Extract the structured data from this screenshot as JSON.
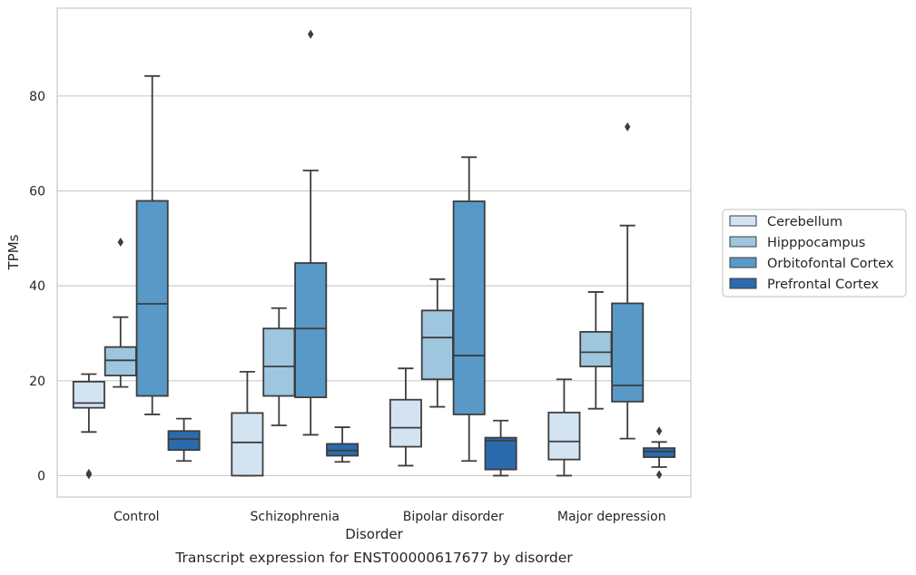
{
  "caption": "Transcript expression for ENST00000617677 by disorder",
  "chart_data": {
    "type": "boxplot",
    "xlabel": "Disorder",
    "ylabel": "TPMs",
    "ylim": [
      -4.5,
      98.5
    ],
    "yticks": [
      0,
      20,
      40,
      60,
      80
    ],
    "grid": "horizontal",
    "legend_position": "right",
    "categories": [
      "Control",
      "Schizophrenia",
      "Bipolar disorder",
      "Major depression"
    ],
    "series": [
      {
        "name": "Cerebellum",
        "color": "#d4e3f2",
        "boxes": [
          {
            "whisker_low": 9.2,
            "q1": 14.3,
            "median": 15.3,
            "q3": 19.8,
            "whisker_high": 21.4,
            "outliers": [
              0.2,
              0.5
            ]
          },
          {
            "whisker_low": 0.0,
            "q1": 0.0,
            "median": 7.0,
            "q3": 13.2,
            "whisker_high": 21.9,
            "outliers": []
          },
          {
            "whisker_low": 2.1,
            "q1": 6.1,
            "median": 10.1,
            "q3": 16.0,
            "whisker_high": 22.6,
            "outliers": []
          },
          {
            "whisker_low": 0.0,
            "q1": 3.4,
            "median": 7.2,
            "q3": 13.3,
            "whisker_high": 20.3,
            "outliers": []
          }
        ]
      },
      {
        "name": "Hipppocampus",
        "color": "#9ec6de",
        "boxes": [
          {
            "whisker_low": 18.7,
            "q1": 21.1,
            "median": 24.3,
            "q3": 27.1,
            "whisker_high": 33.4,
            "outliers": [
              49.2
            ]
          },
          {
            "whisker_low": 10.6,
            "q1": 16.8,
            "median": 23.0,
            "q3": 31.0,
            "whisker_high": 35.3,
            "outliers": []
          },
          {
            "whisker_low": 14.5,
            "q1": 20.3,
            "median": 29.1,
            "q3": 34.8,
            "whisker_high": 41.4,
            "outliers": []
          },
          {
            "whisker_low": 14.1,
            "q1": 23.0,
            "median": 26.0,
            "q3": 30.3,
            "whisker_high": 38.7,
            "outliers": []
          }
        ]
      },
      {
        "name": "Orbitofontal Cortex",
        "color": "#5899c7",
        "boxes": [
          {
            "whisker_low": 12.9,
            "q1": 16.8,
            "median": 36.2,
            "q3": 57.9,
            "whisker_high": 84.2,
            "outliers": []
          },
          {
            "whisker_low": 8.6,
            "q1": 16.5,
            "median": 31.0,
            "q3": 44.8,
            "whisker_high": 64.3,
            "outliers": [
              93.0
            ]
          },
          {
            "whisker_low": 3.1,
            "q1": 12.9,
            "median": 25.3,
            "q3": 57.8,
            "whisker_high": 67.1,
            "outliers": []
          },
          {
            "whisker_low": 7.8,
            "q1": 15.6,
            "median": 19.0,
            "q3": 36.3,
            "whisker_high": 52.7,
            "outliers": [
              73.5
            ]
          }
        ]
      },
      {
        "name": "Prefrontal Cortex",
        "color": "#2b6aac",
        "boxes": [
          {
            "whisker_low": 3.1,
            "q1": 5.4,
            "median": 7.7,
            "q3": 9.4,
            "whisker_high": 12.0,
            "outliers": []
          },
          {
            "whisker_low": 2.9,
            "q1": 4.2,
            "median": 5.3,
            "q3": 6.7,
            "whisker_high": 10.2,
            "outliers": []
          },
          {
            "whisker_low": 0.0,
            "q1": 1.3,
            "median": 7.4,
            "q3": 8.0,
            "whisker_high": 11.6,
            "outliers": []
          },
          {
            "whisker_low": 1.8,
            "q1": 3.9,
            "median": 5.1,
            "q3": 5.8,
            "whisker_high": 7.1,
            "outliers": [
              9.4,
              0.2
            ]
          }
        ]
      }
    ]
  }
}
